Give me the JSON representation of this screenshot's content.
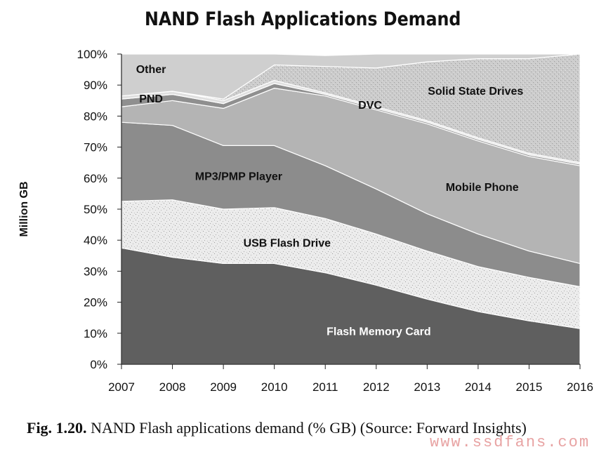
{
  "title": "NAND Flash Applications Demand",
  "caption": {
    "label": "Fig. 1.20.",
    "text": "NAND Flash applications demand (% GB) (Source: Forward Insights)"
  },
  "watermark": "www.ssdfans.com",
  "chart_data": {
    "type": "area",
    "stacked": true,
    "title": "NAND Flash Applications Demand",
    "xlabel": "",
    "ylabel": "Million GB",
    "x": [
      "2007",
      "2008",
      "2009",
      "2010",
      "2011",
      "2012",
      "2013",
      "2014",
      "2015",
      "2016"
    ],
    "ylim": [
      0,
      100
    ],
    "yticks": [
      "0%",
      "10%",
      "20%",
      "30%",
      "40%",
      "50%",
      "60%",
      "70%",
      "80%",
      "90%",
      "100%"
    ],
    "grid": false,
    "legend": "none (series labeled inline)",
    "series": [
      {
        "name": "Flash Memory Card",
        "values": [
          37.5,
          34.5,
          32.5,
          32.5,
          29.5,
          25.5,
          21,
          17,
          14,
          11.5
        ],
        "color": "#5f5f5f"
      },
      {
        "name": "USB Flash Drive",
        "values": [
          15,
          18.5,
          17.5,
          18,
          17.5,
          16.5,
          15.5,
          14.5,
          14,
          13.5
        ],
        "color": "#e6e6e6"
      },
      {
        "name": "MP3/PMP Player",
        "values": [
          25.5,
          24,
          20.5,
          20,
          17,
          14.5,
          12,
          10.5,
          8.5,
          7.5
        ],
        "color": "#8c8c8c"
      },
      {
        "name": "Mobile Phone",
        "values": [
          5,
          8,
          12,
          18.5,
          22.5,
          25.5,
          29,
          30,
          30.5,
          31.5
        ],
        "color": "#b4b4b4"
      },
      {
        "name": "PND",
        "values": [
          2.5,
          2,
          1.5,
          1.5,
          0.5,
          0.5,
          0.5,
          0.5,
          0.5,
          0.5
        ],
        "color": "#8f8f8f"
      },
      {
        "name": "DVC",
        "values": [
          1,
          1,
          1,
          1,
          0.5,
          0.5,
          0.5,
          0.5,
          0.5,
          0.5
        ],
        "color": "#e0e0e0"
      },
      {
        "name": "Solid State Drives",
        "values": [
          0,
          0,
          0.5,
          5,
          8.5,
          12.5,
          19,
          25.5,
          30.5,
          35
        ],
        "color": "#c8c8c8"
      },
      {
        "name": "Other",
        "values": [
          13.5,
          12,
          14.5,
          3.5,
          3.5,
          4.5,
          2.5,
          1.5,
          1.5,
          0
        ],
        "color": "#cfcfcf"
      }
    ],
    "inline_labels": [
      {
        "text": "Other",
        "x": 2007.58,
        "y": 95,
        "color": "#111111"
      },
      {
        "text": "PND",
        "x": 2007.58,
        "y": 85.5,
        "color": "#111111"
      },
      {
        "text": "DVC",
        "x": 2011.88,
        "y": 83.5,
        "color": "#111111"
      },
      {
        "text": "Solid State Drives",
        "x": 2013.95,
        "y": 88,
        "color": "#111111"
      },
      {
        "text": "MP3/PMP Player",
        "x": 2009.3,
        "y": 60.5,
        "color": "#111111"
      },
      {
        "text": "Mobile Phone",
        "x": 2014.08,
        "y": 57,
        "color": "#111111"
      },
      {
        "text": "USB Flash Drive",
        "x": 2010.25,
        "y": 39,
        "color": "#111111"
      },
      {
        "text": "Flash Memory Card",
        "x": 2012.05,
        "y": 10.5,
        "color": "#ffffff"
      }
    ]
  }
}
